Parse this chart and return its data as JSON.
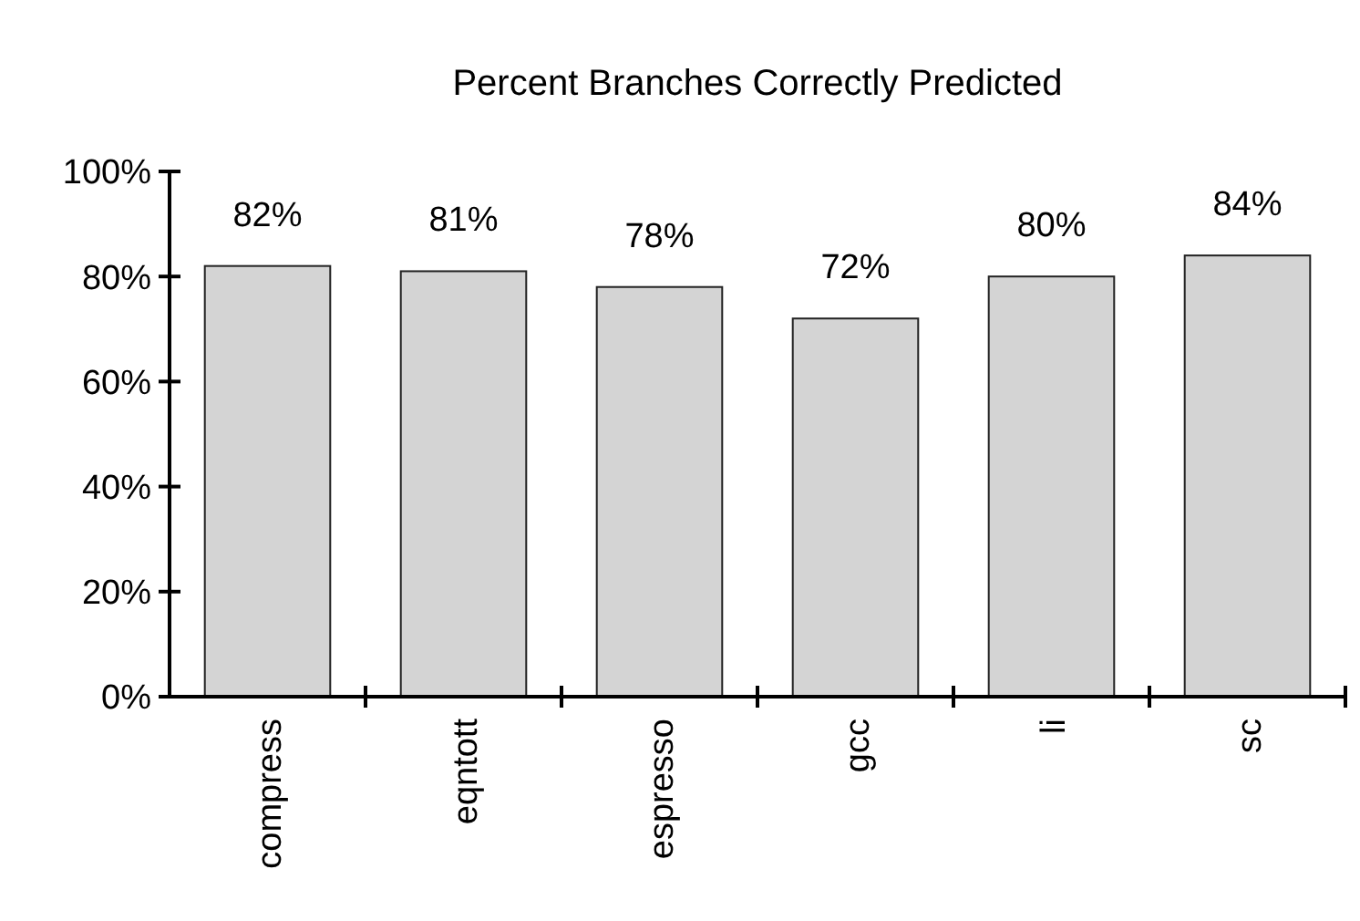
{
  "chart_data": {
    "type": "bar",
    "title": "Percent Branches Correctly Predicted",
    "categories": [
      "compress",
      "eqntott",
      "espresso",
      "gcc",
      "li",
      "sc"
    ],
    "values": [
      82,
      81,
      78,
      72,
      80,
      84
    ],
    "value_labels": [
      "82%",
      "81%",
      "78%",
      "72%",
      "80%",
      "84%"
    ],
    "color": "#d4d4d4",
    "ylim": [
      0,
      100
    ],
    "yticks": [
      {
        "value": 0,
        "label": "0%"
      },
      {
        "value": 20,
        "label": "20%"
      },
      {
        "value": 40,
        "label": "40%"
      },
      {
        "value": 60,
        "label": "60%"
      },
      {
        "value": 80,
        "label": "80%"
      },
      {
        "value": 100,
        "label": "100%"
      }
    ],
    "grid": false
  }
}
